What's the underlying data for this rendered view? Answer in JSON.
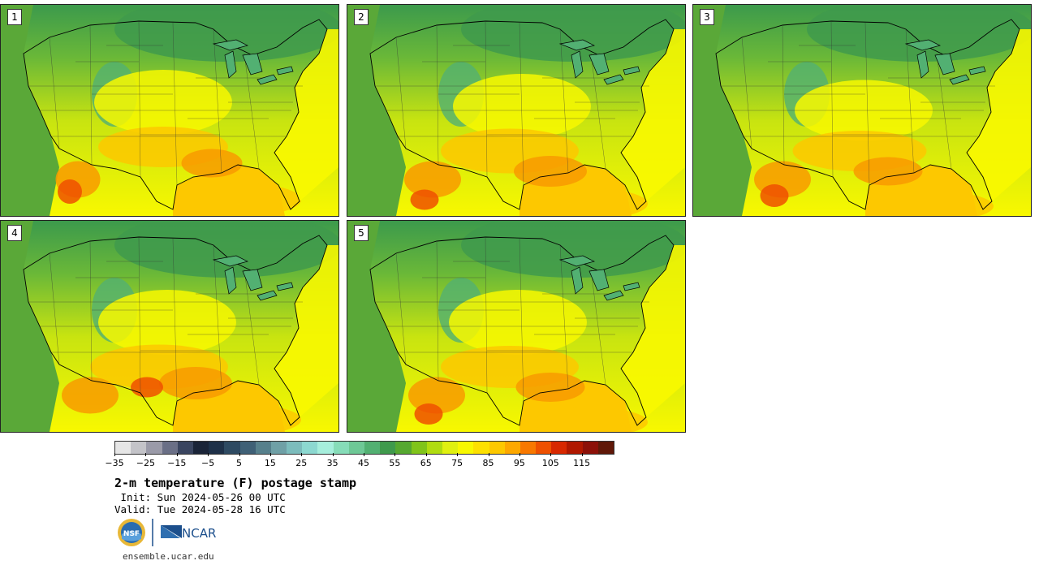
{
  "panels": [
    {
      "label": "1"
    },
    {
      "label": "2"
    },
    {
      "label": "3"
    },
    {
      "label": "4"
    },
    {
      "label": "5"
    }
  ],
  "colorbar": {
    "colors": [
      "#e6e6e6",
      "#c3c3c8",
      "#9a9aa8",
      "#6a6f86",
      "#3a4560",
      "#1a2438",
      "#1e3048",
      "#2e4a62",
      "#3f6076",
      "#57808c",
      "#6fa0a6",
      "#7cbcbc",
      "#8cd8d0",
      "#a6eedc",
      "#86dcb8",
      "#6ec896",
      "#52b072",
      "#3f9a4c",
      "#56a830",
      "#80c41a",
      "#b0dc10",
      "#e0f010",
      "#f8f800",
      "#fde000",
      "#fdc800",
      "#fda800",
      "#f87800",
      "#ee5000",
      "#d82800",
      "#b01800",
      "#8c1008",
      "#601808"
    ],
    "ticks": [
      "−35",
      "−25",
      "−15",
      "−5",
      "5",
      "15",
      "25",
      "35",
      "45",
      "55",
      "65",
      "75",
      "85",
      "95",
      "105",
      "115"
    ]
  },
  "title": "2-m temperature (F) postage stamp",
  "init": " Init: Sun 2024-05-26 00 UTC",
  "valid": "Valid: Tue 2024-05-28 16 UTC",
  "logos": {
    "nsf": "NSF",
    "ncar": "NCAR",
    "site": "ensemble.ucar.edu"
  }
}
